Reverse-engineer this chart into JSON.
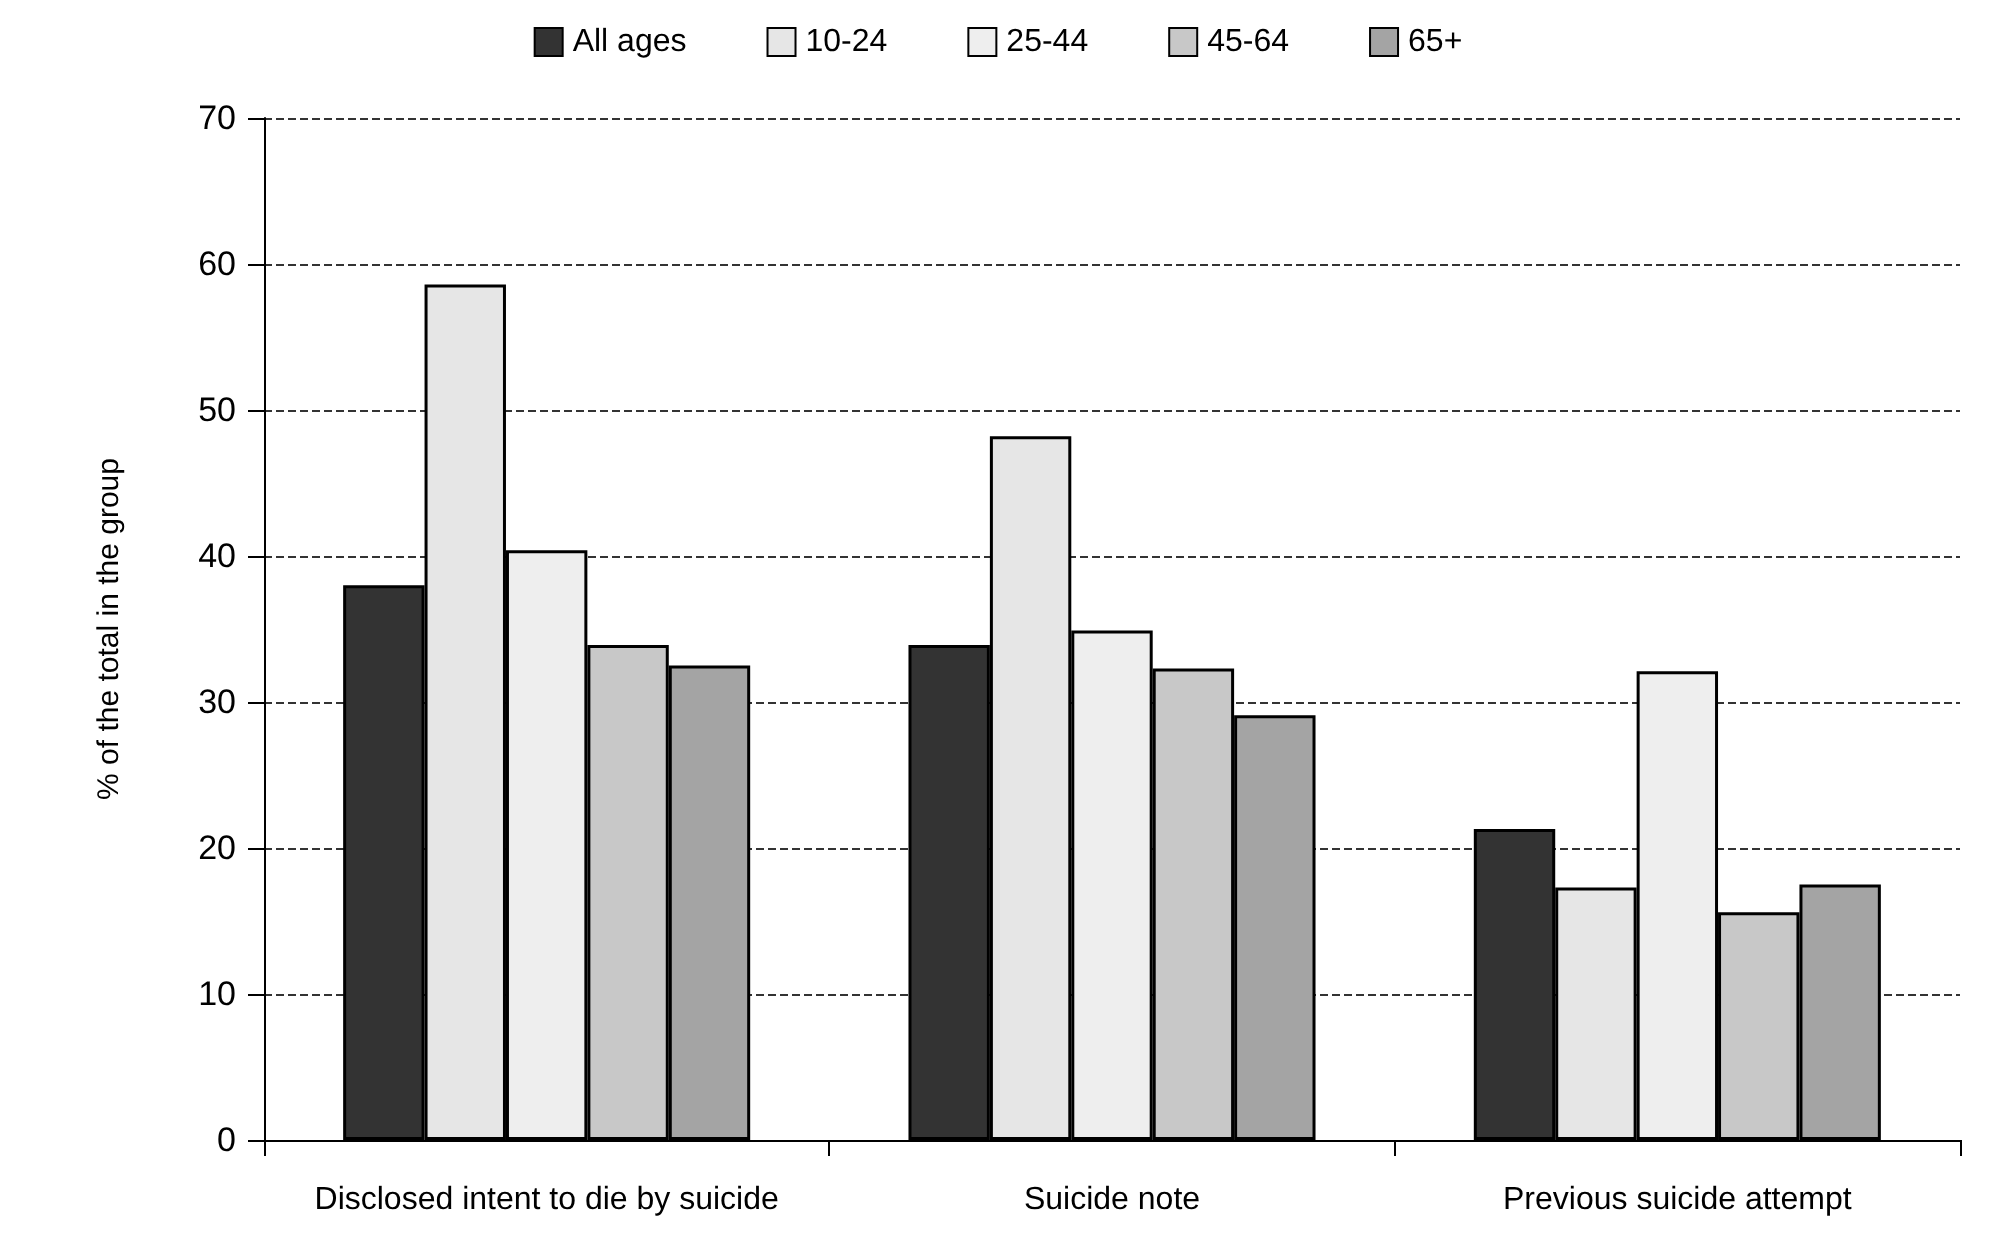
{
  "chart_data": {
    "type": "bar",
    "categories": [
      "Disclosed intent to die by suicide",
      "Suicide note",
      "Previous suicide attempt"
    ],
    "ylabel": "% of the total in the group",
    "series": [
      {
        "name": "All ages",
        "color": "#333333",
        "values": [
          38,
          33.9,
          21.3
        ]
      },
      {
        "name": "10-24",
        "color": "#e6e6e6",
        "values": [
          58.6,
          48.2,
          17.3
        ]
      },
      {
        "name": "25-44",
        "color": "#eeeeee",
        "values": [
          40.4,
          34.9,
          32.1
        ]
      },
      {
        "name": "45-64",
        "color": "#c8c8c8",
        "values": [
          33.9,
          32.3,
          15.6
        ]
      },
      {
        "name": "65+",
        "color": "#a4a4a4",
        "values": [
          32.5,
          29.1,
          17.5
        ]
      }
    ],
    "ylim": [
      0,
      70
    ],
    "yticks": [
      0,
      10,
      20,
      30,
      40,
      50,
      60,
      70
    ],
    "grid": "y",
    "legend": "top",
    "line_style": "dashed"
  }
}
